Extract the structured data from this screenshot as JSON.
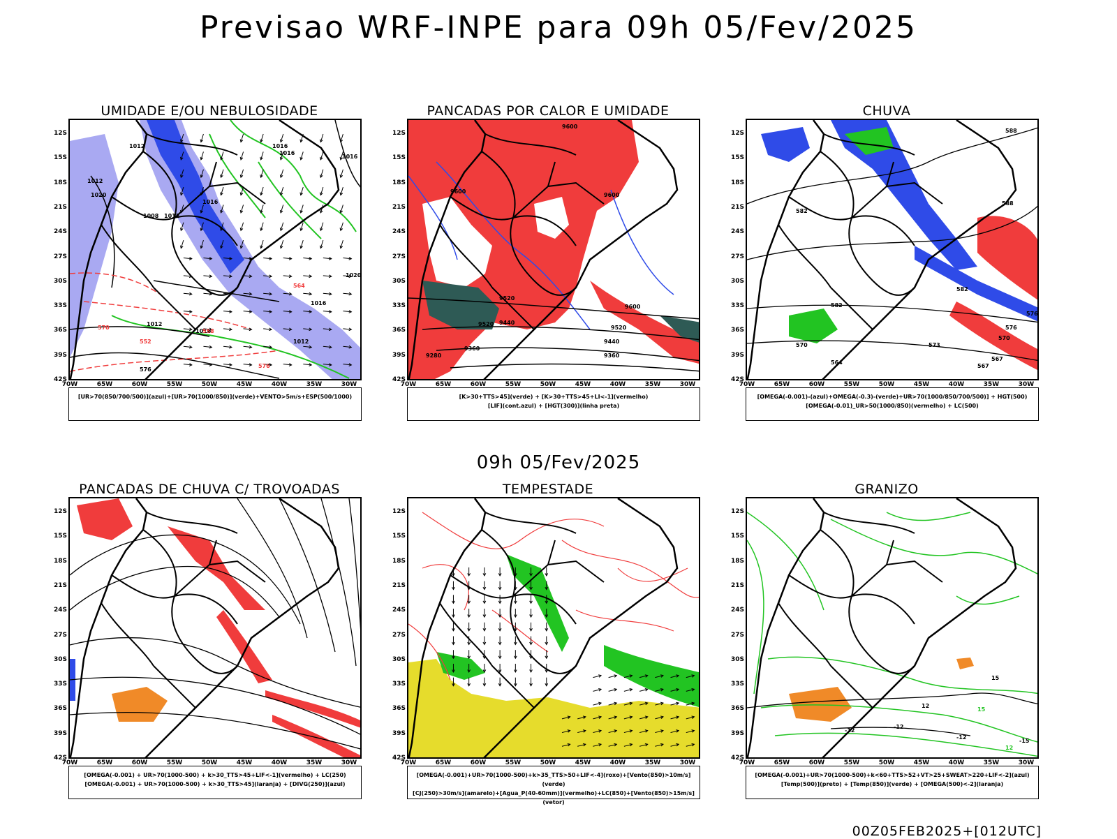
{
  "title": "Previsao WRF-INPE  para 09h 05/Fev/2025",
  "subtitle": "09h 05/Fev/2025",
  "run_stamp": "00Z05FEB2025+[012UTC]",
  "lat_labels": [
    "12S",
    "15S",
    "18S",
    "21S",
    "24S",
    "27S",
    "30S",
    "33S",
    "36S",
    "39S",
    "42S"
  ],
  "lon_labels": [
    "70W",
    "65W",
    "60W",
    "55W",
    "50W",
    "45W",
    "40W",
    "35W",
    "30W"
  ],
  "colors": {
    "blue": "#2f4be8",
    "light_blue": "#a9a9f2",
    "green": "#22c422",
    "red": "#f03c3c",
    "dark_teal": "#2e5a55",
    "yellow": "#e6dc2c",
    "orange": "#f08a28",
    "black": "#000000"
  },
  "panels": [
    {
      "title": "UMIDADE E/OU NEBULOSIDADE",
      "legend": [
        "[UR>70(850/700/500)](azul)+[UR>70(1000/850)](verde)+VENTO>5m/s+ESP(500/1000)"
      ]
    },
    {
      "title": "PANCADAS POR CALOR E UMIDADE",
      "legend": [
        "[K>30+TTS>45](verde) + [K>30+TTS>45+LI<-1](vermelho)",
        "[LIF](cont.azul) + [HGT(300)](linha preta)"
      ]
    },
    {
      "title": "CHUVA",
      "legend": [
        "[OMEGA(-0.001)-(azul)+OMEGA(-0.3)-(verde)+UR>70(1000/850/700/500)] + HGT(500)",
        "[OMEGA(-0.01)_UR>50(1000/850)(vermelho) + LC(500)"
      ]
    },
    {
      "title": "PANCADAS DE CHUVA C/ TROVOADAS",
      "legend": [
        "[OMEGA(-0.001) + UR>70(1000-500) + k>30_TTS>45+LIF<-1](vermelho) + LC(250)",
        "[OMEGA(-0.001) + UR>70(1000-500) + k>30_TTS>45](laranja) + [DIVG(250)](azul)"
      ]
    },
    {
      "title": "TEMPESTADE",
      "legend": [
        "[OMEGA(-0.001)+UR>70(1000-500)+k>35_TTS>50+LIF<-4](roxo)+[Vento(850)>10m/s](verde)",
        "[CJ(250)>30m/s](amarelo)+[Agua_P(40-60mm)](vermelho)+LC(850)+[Vento(850)>15m/s](vetor)"
      ]
    },
    {
      "title": "GRANIZO",
      "legend": [
        "[OMEGA(-0.001)+UR>70(1000-500)+k<60+TTS>52+VT>25+SWEAT>220+LIF<-2](azul)",
        "[Temp(500)](preto) + [Temp(850)](verde) + [OMEGA(500)<-2](laranja)"
      ]
    }
  ],
  "contour_labels": {
    "p1": [
      "1012",
      "1016",
      "1016",
      "1016",
      "1020",
      "1012",
      "1008",
      "1012",
      "1016",
      "1012",
      "1016",
      "1020",
      "1016",
      "1012",
      "576",
      "570",
      "564",
      "558",
      "552",
      "576"
    ],
    "p2": [
      "9600",
      "9600",
      "9600",
      "9520",
      "9440",
      "9360",
      "9280",
      "9520",
      "9360",
      "9440",
      "9520",
      "9600"
    ],
    "p3": [
      "588",
      "582",
      "588",
      "582",
      "576",
      "570",
      "564",
      "576",
      "570",
      "567",
      "573",
      "582",
      "567"
    ],
    "p6": [
      "-12",
      "-12",
      "-12",
      "15",
      "12",
      "15",
      "12",
      "-15"
    ]
  }
}
